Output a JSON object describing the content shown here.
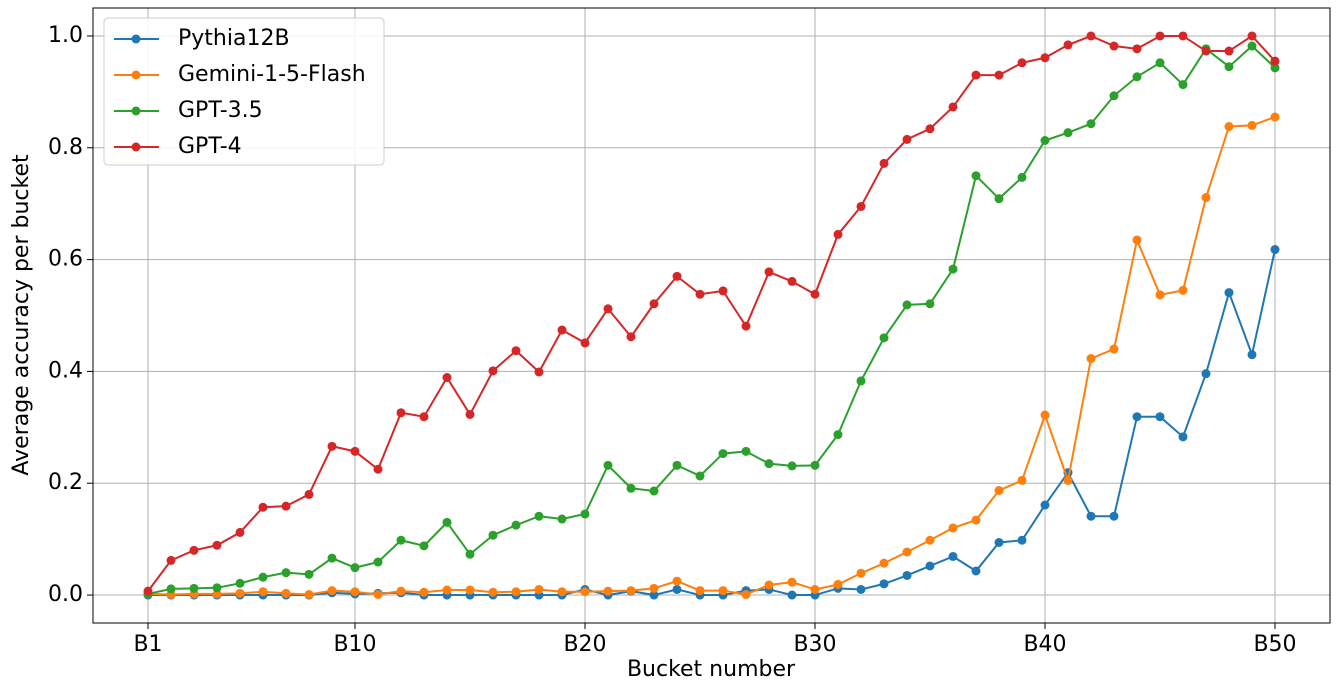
{
  "chart_data": {
    "type": "line",
    "xlabel": "Bucket number",
    "ylabel": "Average accuracy per bucket",
    "categories": [
      "B1",
      null,
      null,
      null,
      null,
      null,
      null,
      null,
      null,
      "B10",
      null,
      null,
      null,
      null,
      null,
      null,
      null,
      null,
      null,
      "B20",
      null,
      null,
      null,
      null,
      null,
      null,
      null,
      null,
      null,
      "B30",
      null,
      null,
      null,
      null,
      null,
      null,
      null,
      null,
      null,
      "B40",
      null,
      null,
      null,
      null,
      null,
      null,
      null,
      null,
      null,
      "B50"
    ],
    "ylim": [
      -0.05,
      1.05
    ],
    "yticks": [
      {
        "value": 0,
        "label": "0.0"
      },
      0.2,
      0.4,
      0.6,
      0.8,
      {
        "value": 1,
        "label": "1.0"
      }
    ],
    "grid": true,
    "legend": "upper left",
    "series": [
      {
        "name": "Pythia12B",
        "color": "#1f77b4",
        "values": [
          0,
          0,
          0,
          0,
          0,
          0,
          0,
          0,
          0.004,
          0.002,
          0.003,
          0.004,
          0,
          0,
          0,
          0,
          0,
          0,
          0,
          0.01,
          0,
          0.007,
          0,
          0.01,
          0,
          0,
          0.008,
          0.01,
          0,
          0,
          0.012,
          0.01,
          0.02,
          0.035,
          0.052,
          0.069,
          0.043,
          0.094,
          0.098,
          0.161,
          0.219,
          0.141,
          0.141,
          0.319,
          0.319,
          0.283,
          0.396,
          0.541,
          0.43,
          0.618
        ]
      },
      {
        "name": "Gemini-1-5-Flash",
        "color": "#ff7f0e",
        "values": [
          0.002,
          0.001,
          0.002,
          0.002,
          0.003,
          0.006,
          0.003,
          0.001,
          0.008,
          0.006,
          0.001,
          0.007,
          0.005,
          0.009,
          0.009,
          0.005,
          0.006,
          0.01,
          0.006,
          0.006,
          0.007,
          0.008,
          0.012,
          0.025,
          0.008,
          0.008,
          0.001,
          0.018,
          0.023,
          0.01,
          0.019,
          0.039,
          0.057,
          0.077,
          0.098,
          0.12,
          0.134,
          0.187,
          0.205,
          0.322,
          0.205,
          0.423,
          0.44,
          0.635,
          0.537,
          0.545,
          0.711,
          0.838,
          0.84,
          0.855
        ]
      },
      {
        "name": "GPT-3.5",
        "color": "#2ca02c",
        "values": [
          0.002,
          0.011,
          0.012,
          0.013,
          0.021,
          0.032,
          0.04,
          0.037,
          0.066,
          0.049,
          0.059,
          0.098,
          0.088,
          0.13,
          0.073,
          0.107,
          0.125,
          0.141,
          0.136,
          0.145,
          0.232,
          0.191,
          0.186,
          0.232,
          0.213,
          0.253,
          0.257,
          0.235,
          0.231,
          0.232,
          0.287,
          0.383,
          0.46,
          0.519,
          0.521,
          0.583,
          0.75,
          0.709,
          0.747,
          0.813,
          0.827,
          0.843,
          0.893,
          0.927,
          0.952,
          0.913,
          0.977,
          0.945,
          0.982,
          0.943
        ]
      },
      {
        "name": "GPT-4",
        "color": "#d62728",
        "values": [
          0.007,
          0.062,
          0.08,
          0.089,
          0.112,
          0.157,
          0.159,
          0.18,
          0.266,
          0.257,
          0.225,
          0.326,
          0.319,
          0.389,
          0.323,
          0.401,
          0.437,
          0.399,
          0.474,
          0.451,
          0.512,
          0.462,
          0.521,
          0.57,
          0.538,
          0.544,
          0.481,
          0.578,
          0.561,
          0.538,
          0.645,
          0.695,
          0.772,
          0.815,
          0.834,
          0.873,
          0.93,
          0.93,
          0.952,
          0.961,
          0.984,
          1.0,
          0.982,
          0.977,
          1.0,
          1.0,
          0.973,
          0.973,
          1.0,
          0.955
        ]
      }
    ]
  }
}
